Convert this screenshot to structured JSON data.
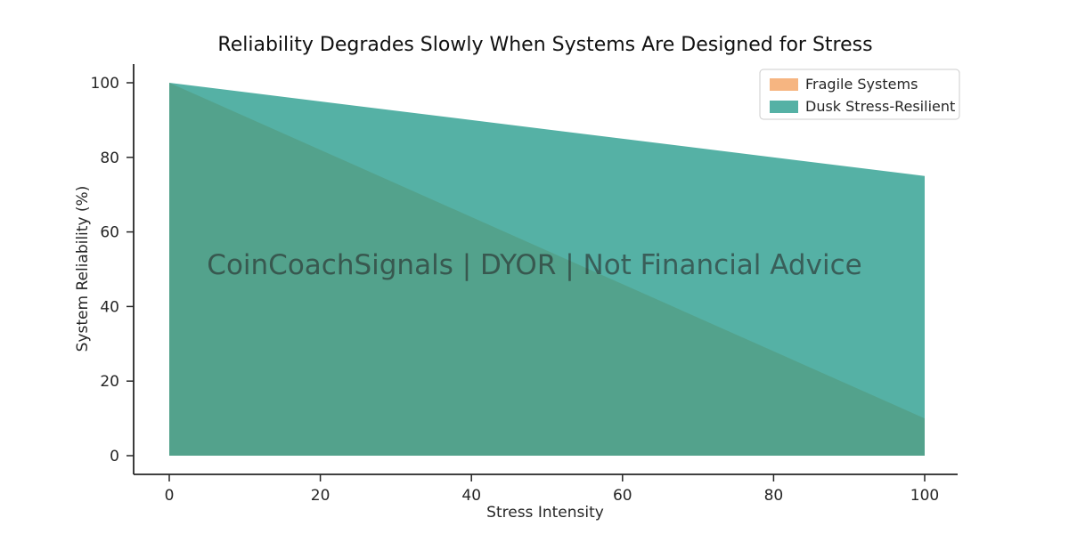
{
  "chart_data": {
    "type": "area",
    "title": "Reliability Degrades Slowly When Systems Are Designed for Stress",
    "xlabel": "Stress Intensity",
    "ylabel": "System Reliability (%)",
    "xlim": [
      0,
      100
    ],
    "ylim": [
      0,
      100
    ],
    "x_ticks": [
      0,
      20,
      40,
      60,
      80,
      100
    ],
    "y_ticks": [
      0,
      20,
      40,
      60,
      80,
      100
    ],
    "grid": false,
    "baseline": 0,
    "legend": {
      "position": "top-right",
      "entries": [
        "Fragile Systems",
        "Dusk Stress-Resilient"
      ]
    },
    "watermark": {
      "text": "CoinCoachSignals | DYOR | Not Financial Advice",
      "color": "#6b7b7b"
    },
    "series": [
      {
        "name": "Fragile Systems",
        "color": "#f4a261",
        "alpha": 0.8,
        "x": [
          0,
          100
        ],
        "values": [
          100,
          10
        ]
      },
      {
        "name": "Dusk Stress-Resilient",
        "color": "#2a9d8f",
        "alpha": 0.8,
        "x": [
          0,
          100
        ],
        "values": [
          100,
          75
        ]
      }
    ]
  }
}
